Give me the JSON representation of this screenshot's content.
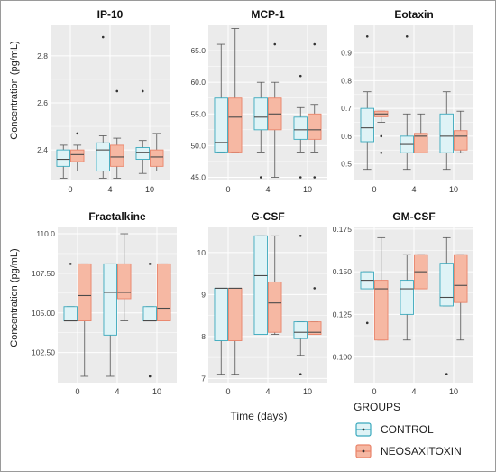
{
  "figure": {
    "y_axis_label": "Concentration (pg/mL)",
    "x_axis_label": "Time (days)"
  },
  "legend": {
    "title": "GROUPS",
    "items": [
      {
        "label": "CONTROL",
        "fill": "#dff3f6",
        "stroke": "#3aa9bd"
      },
      {
        "label": "NEOSAXITOXIN",
        "fill": "#f6b8a3",
        "stroke": "#e9846a"
      }
    ]
  },
  "colors": {
    "panel_bg": "#ebebeb",
    "grid": "#ffffff",
    "whisker": "#555555",
    "point": "#333333"
  },
  "chart_data": [
    {
      "type": "boxplot",
      "title": "IP-10",
      "categories": [
        "0",
        "4",
        "10"
      ],
      "ylim": [
        2.27,
        2.93
      ],
      "yticks": [
        2.4,
        2.6,
        2.8
      ],
      "ytick_labels": [
        "2.4",
        "2.6",
        "2.8"
      ],
      "series": [
        {
          "name": "CONTROL",
          "boxes": [
            {
              "min": 2.28,
              "q1": 2.33,
              "median": 2.36,
              "q3": 2.4,
              "max": 2.42,
              "outliers": []
            },
            {
              "min": 2.28,
              "q1": 2.31,
              "median": 2.4,
              "q3": 2.43,
              "max": 2.46,
              "outliers": [
                2.88
              ]
            },
            {
              "min": 2.3,
              "q1": 2.36,
              "median": 2.39,
              "q3": 2.41,
              "max": 2.44,
              "outliers": [
                2.65
              ]
            }
          ]
        },
        {
          "name": "NEOSAXITOXIN",
          "boxes": [
            {
              "min": 2.31,
              "q1": 2.35,
              "median": 2.38,
              "q3": 2.4,
              "max": 2.42,
              "outliers": [
                2.47
              ]
            },
            {
              "min": 2.28,
              "q1": 2.33,
              "median": 2.37,
              "q3": 2.42,
              "max": 2.45,
              "outliers": [
                2.65
              ]
            },
            {
              "min": 2.31,
              "q1": 2.33,
              "median": 2.37,
              "q3": 2.4,
              "max": 2.47,
              "outliers": []
            }
          ]
        }
      ]
    },
    {
      "type": "boxplot",
      "title": "MCP-1",
      "categories": [
        "0",
        "4",
        "10"
      ],
      "ylim": [
        44.5,
        69
      ],
      "yticks": [
        45,
        50,
        55,
        60,
        65
      ],
      "ytick_labels": [
        "45.0",
        "50.0",
        "55.0",
        "60.0",
        "65.0"
      ],
      "series": [
        {
          "name": "CONTROL",
          "boxes": [
            {
              "min": 49,
              "q1": 49,
              "median": 50.5,
              "q3": 57.5,
              "max": 66,
              "outliers": []
            },
            {
              "min": 49,
              "q1": 52.5,
              "median": 54.5,
              "q3": 57.5,
              "max": 60,
              "outliers": [
                45
              ]
            },
            {
              "min": 49,
              "q1": 51,
              "median": 52.5,
              "q3": 54.5,
              "max": 56,
              "outliers": [
                45,
                61
              ]
            }
          ]
        },
        {
          "name": "NEOSAXITOXIN",
          "boxes": [
            {
              "min": 49,
              "q1": 49,
              "median": 54.5,
              "q3": 57.5,
              "max": 68.5,
              "outliers": []
            },
            {
              "min": 45,
              "q1": 52.5,
              "median": 55,
              "q3": 57.5,
              "max": 60,
              "outliers": [
                66
              ]
            },
            {
              "min": 49,
              "q1": 51,
              "median": 52.5,
              "q3": 55,
              "max": 56.5,
              "outliers": [
                45,
                66
              ]
            }
          ]
        }
      ]
    },
    {
      "type": "boxplot",
      "title": "Eotaxin",
      "categories": [
        "0",
        "4",
        "10"
      ],
      "ylim": [
        0.44,
        1.0
      ],
      "yticks": [
        0.5,
        0.6,
        0.7,
        0.8,
        0.9
      ],
      "ytick_labels": [
        "0.5",
        "0.6",
        "0.7",
        "0.8",
        "0.9"
      ],
      "series": [
        {
          "name": "CONTROL",
          "boxes": [
            {
              "min": 0.48,
              "q1": 0.58,
              "median": 0.63,
              "q3": 0.7,
              "max": 0.76,
              "outliers": [
                0.96
              ]
            },
            {
              "min": 0.48,
              "q1": 0.54,
              "median": 0.57,
              "q3": 0.6,
              "max": 0.68,
              "outliers": [
                0.96
              ]
            },
            {
              "min": 0.48,
              "q1": 0.54,
              "median": 0.6,
              "q3": 0.68,
              "max": 0.76,
              "outliers": []
            }
          ]
        },
        {
          "name": "NEOSAXITOXIN",
          "boxes": [
            {
              "min": 0.65,
              "q1": 0.67,
              "median": 0.68,
              "q3": 0.69,
              "max": 0.69,
              "outliers": [
                0.54,
                0.6
              ]
            },
            {
              "min": 0.54,
              "q1": 0.54,
              "median": 0.6,
              "q3": 0.61,
              "max": 0.68,
              "outliers": []
            },
            {
              "min": 0.54,
              "q1": 0.55,
              "median": 0.6,
              "q3": 0.62,
              "max": 0.69,
              "outliers": []
            }
          ]
        }
      ]
    },
    {
      "type": "boxplot",
      "title": "Fractalkine",
      "categories": [
        "0",
        "4",
        "10"
      ],
      "ylim": [
        100.6,
        110.4
      ],
      "yticks": [
        102.5,
        105,
        107.5,
        110
      ],
      "ytick_labels": [
        "102.50",
        "105.00",
        "107.50",
        "110.0"
      ],
      "series": [
        {
          "name": "CONTROL",
          "boxes": [
            {
              "min": 104.5,
              "q1": 104.5,
              "median": 104.5,
              "q3": 105.4,
              "max": 105.4,
              "outliers": [
                108.1
              ]
            },
            {
              "min": 101.0,
              "q1": 103.6,
              "median": 106.3,
              "q3": 108.1,
              "max": 108.1,
              "outliers": []
            },
            {
              "min": 104.5,
              "q1": 104.5,
              "median": 104.5,
              "q3": 105.4,
              "max": 105.4,
              "outliers": [
                101.0,
                108.1
              ]
            }
          ]
        },
        {
          "name": "NEOSAXITOXIN",
          "boxes": [
            {
              "min": 101.0,
              "q1": 104.5,
              "median": 106.1,
              "q3": 108.1,
              "max": 108.1,
              "outliers": []
            },
            {
              "min": 104.5,
              "q1": 105.9,
              "median": 106.3,
              "q3": 108.1,
              "max": 110.0,
              "outliers": []
            },
            {
              "min": 104.5,
              "q1": 104.5,
              "median": 105.3,
              "q3": 108.1,
              "max": 108.1,
              "outliers": []
            }
          ]
        }
      ]
    },
    {
      "type": "boxplot",
      "title": "G-CSF",
      "categories": [
        "0",
        "4",
        "10"
      ],
      "ylim": [
        6.9,
        10.6
      ],
      "yticks": [
        7,
        8,
        9,
        10
      ],
      "ytick_labels": [
        "7",
        "8",
        "9",
        "10"
      ],
      "series": [
        {
          "name": "CONTROL",
          "boxes": [
            {
              "min": 7.1,
              "q1": 7.9,
              "median": 9.15,
              "q3": 9.15,
              "max": 9.15,
              "outliers": []
            },
            {
              "min": 8.05,
              "q1": 8.05,
              "median": 9.45,
              "q3": 10.4,
              "max": 10.4,
              "outliers": []
            },
            {
              "min": 7.55,
              "q1": 7.95,
              "median": 8.1,
              "q3": 8.35,
              "max": 8.35,
              "outliers": [
                7.1,
                10.4
              ]
            }
          ]
        },
        {
          "name": "NEOSAXITOXIN",
          "boxes": [
            {
              "min": 7.1,
              "q1": 7.9,
              "median": 9.15,
              "q3": 9.15,
              "max": 9.15,
              "outliers": []
            },
            {
              "min": 8.05,
              "q1": 8.1,
              "median": 8.8,
              "q3": 9.3,
              "max": 10.4,
              "outliers": []
            },
            {
              "min": 8.05,
              "q1": 8.05,
              "median": 8.1,
              "q3": 8.35,
              "max": 8.35,
              "outliers": [
                9.15
              ]
            }
          ]
        }
      ]
    },
    {
      "type": "boxplot",
      "title": "GM-CSF",
      "categories": [
        "0",
        "4",
        "10"
      ],
      "ylim": [
        0.085,
        0.176
      ],
      "yticks": [
        0.1,
        0.125,
        0.15,
        0.175
      ],
      "ytick_labels": [
        "0.100",
        "0.125",
        "0.150",
        "0.175"
      ],
      "series": [
        {
          "name": "CONTROL",
          "boxes": [
            {
              "min": 0.14,
              "q1": 0.14,
              "median": 0.145,
              "q3": 0.15,
              "max": 0.15,
              "outliers": [
                0.12
              ]
            },
            {
              "min": 0.11,
              "q1": 0.125,
              "median": 0.14,
              "q3": 0.145,
              "max": 0.16,
              "outliers": []
            },
            {
              "min": 0.13,
              "q1": 0.13,
              "median": 0.135,
              "q3": 0.155,
              "max": 0.17,
              "outliers": [
                0.09
              ]
            }
          ]
        },
        {
          "name": "NEOSAXITOXIN",
          "boxes": [
            {
              "min": 0.11,
              "q1": 0.11,
              "median": 0.14,
              "q3": 0.145,
              "max": 0.17,
              "outliers": []
            },
            {
              "min": 0.14,
              "q1": 0.14,
              "median": 0.15,
              "q3": 0.16,
              "max": 0.16,
              "outliers": []
            },
            {
              "min": 0.11,
              "q1": 0.132,
              "median": 0.142,
              "q3": 0.16,
              "max": 0.16,
              "outliers": []
            }
          ]
        }
      ]
    }
  ]
}
